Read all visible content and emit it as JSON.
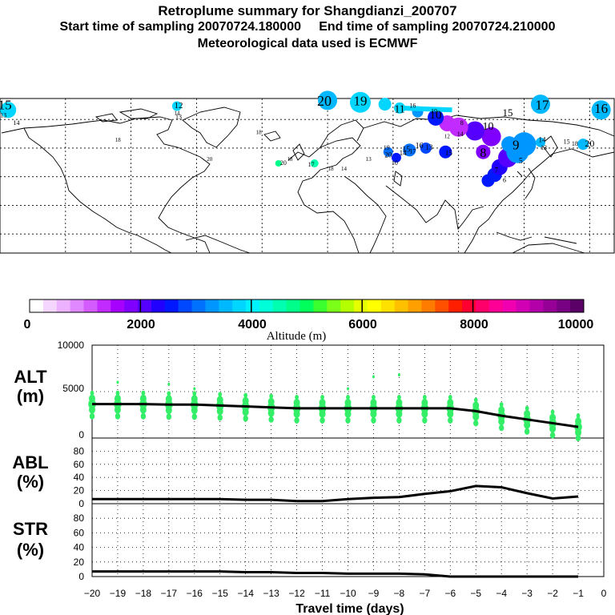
{
  "header": {
    "title": "Retroplume summary for Shangdianzi_200707",
    "line2": "Start time of sampling 20070724.180000     End time of sampling 20070724.210000",
    "line3": "Meteorological data used is ECMWF"
  },
  "colorbar": {
    "title": "Altitude (m)",
    "tick_labels": [
      "0",
      "2000",
      "4000",
      "6000",
      "8000",
      "10000"
    ],
    "colors": [
      "#ffffff",
      "#f5d6ff",
      "#ecb2ff",
      "#e088ff",
      "#d45cff",
      "#c22bff",
      "#a600ff",
      "#8000ff",
      "#5500ff",
      "#2200ff",
      "#0018ff",
      "#0048ff",
      "#0070ff",
      "#0096ff",
      "#00b8ff",
      "#00d6ff",
      "#00f2ff",
      "#00ffd8",
      "#00ffb0",
      "#00ff8a",
      "#00ff5a",
      "#3cff30",
      "#7cff18",
      "#b4ff00",
      "#e6ff00",
      "#ffff00",
      "#ffe100",
      "#ffc000",
      "#ffa000",
      "#ff7c00",
      "#ff5000",
      "#ff1e00",
      "#ff0030",
      "#ff006a",
      "#ff0096",
      "#f000b0",
      "#d200b4",
      "#b400a8",
      "#960096",
      "#780082",
      "#5a0066"
    ]
  },
  "map": {
    "labels": [
      {
        "text": "15",
        "lon": -177,
        "lat": 82,
        "size": 17
      },
      {
        "text": "13",
        "lon": -178,
        "lat": 77,
        "size": 8
      },
      {
        "text": "14",
        "lon": -170,
        "lat": 73,
        "size": 8
      },
      {
        "text": "12",
        "lon": -71,
        "lat": 82,
        "size": 11
      },
      {
        "text": "13",
        "lon": -71,
        "lat": 76,
        "size": 8
      },
      {
        "text": "14",
        "lon": -72,
        "lat": 78,
        "size": 7
      },
      {
        "text": "20",
        "lon": 18,
        "lat": 84,
        "size": 18
      },
      {
        "text": "19",
        "lon": 40,
        "lat": 84,
        "size": 17
      },
      {
        "text": "11",
        "lon": 64,
        "lat": 80,
        "size": 14
      },
      {
        "text": "10",
        "lon": 86,
        "lat": 77,
        "size": 15
      },
      {
        "text": "19",
        "lon": 85,
        "lat": 79,
        "size": 8
      },
      {
        "text": "16",
        "lon": 72,
        "lat": 82,
        "size": 8
      },
      {
        "text": "8",
        "lon": 102,
        "lat": 73,
        "size": 8
      },
      {
        "text": "10",
        "lon": 118,
        "lat": 71,
        "size": 14
      },
      {
        "text": "15",
        "lon": 130,
        "lat": 78,
        "size": 13
      },
      {
        "text": "17",
        "lon": 151,
        "lat": 82,
        "size": 17
      },
      {
        "text": "16",
        "lon": 187,
        "lat": 80,
        "size": 17
      },
      {
        "text": "8",
        "lon": 115,
        "lat": 57,
        "size": 16
      },
      {
        "text": "9",
        "lon": 135,
        "lat": 61,
        "size": 17
      },
      {
        "text": "5",
        "lon": 138,
        "lat": 53,
        "size": 10
      },
      {
        "text": "7",
        "lon": 123,
        "lat": 48,
        "size": 9
      },
      {
        "text": "6",
        "lon": 128,
        "lat": 43,
        "size": 8
      },
      {
        "text": "14",
        "lon": 151,
        "lat": 64,
        "size": 9
      },
      {
        "text": "13",
        "lon": 152,
        "lat": 60,
        "size": 8
      },
      {
        "text": "15",
        "lon": 166,
        "lat": 63,
        "size": 8
      },
      {
        "text": "18",
        "lon": 171,
        "lat": 62,
        "size": 8
      },
      {
        "text": "20",
        "lon": 180,
        "lat": 62,
        "size": 12
      },
      {
        "text": "14",
        "lon": 101,
        "lat": 67,
        "size": 8
      },
      {
        "text": "12",
        "lon": 93,
        "lat": 66,
        "size": 7
      },
      {
        "text": "13",
        "lon": 82,
        "lat": 60,
        "size": 9
      },
      {
        "text": "16",
        "lon": 76,
        "lat": 61,
        "size": 10
      },
      {
        "text": "15",
        "lon": 68,
        "lat": 59,
        "size": 10
      },
      {
        "text": "14",
        "lon": 66,
        "lat": 57,
        "size": 9
      },
      {
        "text": "17",
        "lon": 72,
        "lat": 58,
        "size": 8
      },
      {
        "text": "15",
        "lon": 94,
        "lat": 57,
        "size": 9
      },
      {
        "text": "19",
        "lon": 56,
        "lat": 60,
        "size": 8
      },
      {
        "text": "20",
        "lon": 57,
        "lat": 56,
        "size": 9
      },
      {
        "text": "10",
        "lon": 61,
        "lat": 52,
        "size": 8
      },
      {
        "text": "13",
        "lon": 45,
        "lat": 54,
        "size": 7
      },
      {
        "text": "14",
        "lon": 30,
        "lat": 49,
        "size": 7
      },
      {
        "text": "18",
        "lon": 22,
        "lat": 49,
        "size": 7
      },
      {
        "text": "17",
        "lon": 10,
        "lat": 51,
        "size": 8
      },
      {
        "text": "20",
        "lon": -7,
        "lat": 52,
        "size": 8
      },
      {
        "text": "18",
        "lon": -3,
        "lat": 54,
        "size": 7
      },
      {
        "text": "20",
        "lon": -52,
        "lat": 54,
        "size": 7
      },
      {
        "text": "18",
        "lon": -22,
        "lat": 68,
        "size": 7
      },
      {
        "text": "18",
        "lon": -108,
        "lat": 64,
        "size": 7
      }
    ]
  },
  "panels": {
    "alt": {
      "label1": "ALT",
      "label2": "(m)",
      "ticks": [
        "10000",
        "5000",
        "0"
      ]
    },
    "abl": {
      "label1": "ABL",
      "label2": "(%)",
      "ticks": [
        "80",
        "60",
        "40",
        "20",
        "0"
      ]
    },
    "str": {
      "label1": "STR",
      "label2": "(%)",
      "ticks": [
        "80",
        "60",
        "40",
        "20",
        "0"
      ]
    }
  },
  "chart_data": {
    "type": "line",
    "title": "Retroplume summary for Shangdianzi_200707",
    "xlabel": "Travel time (days)",
    "x_tick_labels": [
      "−20",
      "−19",
      "−18",
      "−17",
      "−16",
      "−15",
      "−14",
      "−13",
      "−12",
      "−11",
      "−10",
      "−9",
      "−8",
      "−7",
      "−6",
      "−5",
      "−4",
      "−3",
      "−2",
      "−1",
      "0"
    ],
    "xlim": [
      -20,
      0
    ],
    "series": [
      {
        "name": "ALT",
        "ylabel": "ALT (m)",
        "ylim": [
          0,
          10000
        ],
        "x": [
          -20,
          -19,
          -18,
          -17,
          -16,
          -15,
          -14,
          -13,
          -12,
          -11,
          -10,
          -9,
          -8,
          -7,
          -6,
          -5,
          -4,
          -3,
          -2,
          -1
        ],
        "values": [
          3650,
          3650,
          3650,
          3600,
          3600,
          3500,
          3400,
          3300,
          3200,
          3200,
          3200,
          3200,
          3200,
          3200,
          3200,
          2900,
          2400,
          2000,
          1600,
          1200
        ]
      },
      {
        "name": "ABL",
        "ylabel": "ABL (%)",
        "ylim": [
          0,
          100
        ],
        "x": [
          -20,
          -19,
          -18,
          -17,
          -16,
          -15,
          -14,
          -13,
          -12,
          -11,
          -10,
          -9,
          -8,
          -7,
          -6,
          -5,
          -4,
          -3,
          -2,
          -1
        ],
        "values": [
          7,
          7,
          7,
          7,
          7,
          7,
          6,
          6,
          4,
          4,
          7,
          9,
          10,
          15,
          19,
          27,
          25,
          16,
          8,
          11
        ]
      },
      {
        "name": "STR",
        "ylabel": "STR (%)",
        "ylim": [
          0,
          100
        ],
        "x": [
          -20,
          -19,
          -18,
          -17,
          -16,
          -15,
          -14,
          -13,
          -12,
          -11,
          -10,
          -9,
          -8,
          -7,
          -6,
          -5,
          -4,
          -3,
          -2,
          -1
        ],
        "values": [
          7,
          7,
          7,
          7,
          7,
          7,
          6,
          6,
          5,
          5,
          4,
          4,
          4,
          3,
          0,
          0,
          0,
          0,
          0,
          0
        ]
      }
    ]
  }
}
